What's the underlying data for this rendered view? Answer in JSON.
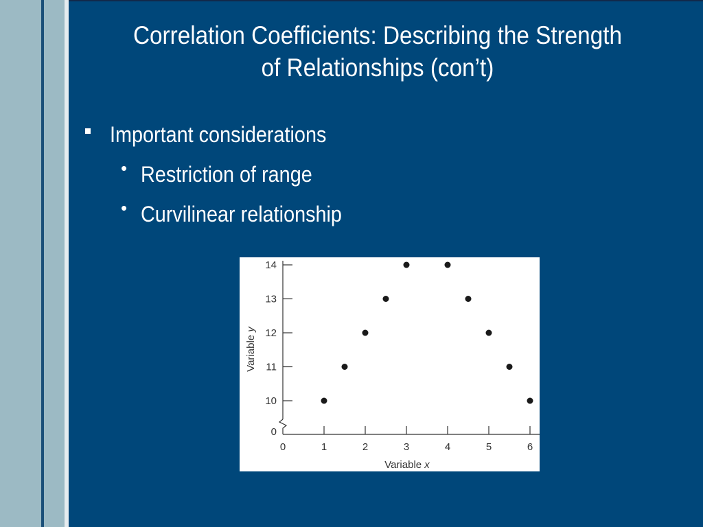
{
  "slide": {
    "title_line1": "Correlation Coefficients:  Describing the Strength",
    "title_line2": "of Relationships (con’t)"
  },
  "bullets": {
    "level1": "Important considerations",
    "level2": [
      "Restriction of range",
      "Curvilinear relationship"
    ]
  },
  "colors": {
    "background": "#00477a",
    "text": "#ffffff",
    "stripe_light": "#9cbac4",
    "stripe_dark": "#1a4f78"
  },
  "chart_data": {
    "type": "scatter",
    "title": "",
    "xlabel": "Variable x",
    "ylabel": "Variable y",
    "xlim": [
      0,
      6
    ],
    "ylim": [
      10,
      14
    ],
    "x_ticks": [
      "0",
      "1",
      "2",
      "3",
      "4",
      "5",
      "6"
    ],
    "y_ticks": [
      "0",
      "10",
      "11",
      "12",
      "13",
      "14"
    ],
    "y_axis_break": true,
    "grid": false,
    "series": [
      {
        "x": [
          1,
          1.5,
          2,
          2.5,
          3,
          4,
          4.5,
          5,
          5.5,
          6
        ],
        "y": [
          10,
          11,
          12,
          13,
          14,
          14,
          13,
          12,
          11,
          10
        ]
      }
    ]
  }
}
